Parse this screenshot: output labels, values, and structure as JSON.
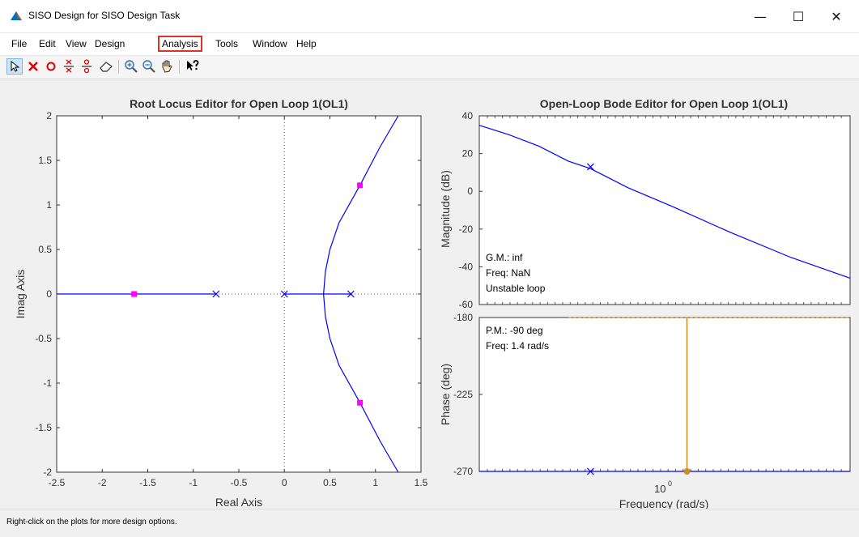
{
  "window": {
    "title": "SISO Design for SISO Design Task",
    "controls": {
      "minimize": "—",
      "maximize": "☐",
      "close": "✕"
    }
  },
  "menu": [
    "File",
    "Edit",
    "View",
    "Design",
    "Analysis",
    "Tools",
    "Window",
    "Help"
  ],
  "menu_highlighted": "Analysis",
  "toolbar": {
    "tools": [
      "select-pointer-icon",
      "add-pole-icon",
      "add-zero-icon",
      "add-complex-pole-icon",
      "add-complex-zero-icon",
      "eraser-icon",
      "zoom-in-icon",
      "zoom-out-icon",
      "pan-hand-icon",
      "whats-this-icon"
    ],
    "selected": "select-pointer-icon"
  },
  "status": "Right-click on the plots for more design options.",
  "colors": {
    "locus": "#0000ff",
    "closed_loop_pole": "#ff00ff",
    "phase_margin": "#d18b1e",
    "highlight": "#e0302a"
  },
  "chart_data": [
    {
      "type": "line",
      "title": "Root Locus Editor for Open Loop 1(OL1)",
      "xlabel": "Real Axis",
      "ylabel": "Imag Axis",
      "xlim": [
        -2.5,
        1.5
      ],
      "ylim": [
        -2,
        2
      ],
      "xticks": [
        "-2.5",
        "-2",
        "-1.5",
        "-1",
        "-0.5",
        "0",
        "0.5",
        "1",
        "1.5"
      ],
      "yticks": [
        "-2",
        "-1.5",
        "-1",
        "-0.5",
        "0",
        "0.5",
        "1",
        "1.5",
        "2"
      ],
      "grid": false,
      "open_loop_poles": [
        [
          -0.75,
          0
        ],
        [
          0,
          0
        ],
        [
          0.73,
          0
        ]
      ],
      "closed_loop_poles": [
        [
          -1.65,
          0
        ],
        [
          0.83,
          1.22
        ],
        [
          0.83,
          -1.22
        ]
      ],
      "series": [
        {
          "values": [
            [
              -2.5,
              0
            ],
            [
              -0.75,
              0
            ]
          ]
        },
        {
          "values": [
            [
              0,
              0
            ],
            [
              0.43,
              0
            ],
            [
              0.73,
              0
            ]
          ]
        },
        {
          "values": [
            [
              0.43,
              0
            ],
            [
              0.45,
              0.25
            ],
            [
              0.5,
              0.5
            ],
            [
              0.6,
              0.8
            ],
            [
              0.83,
              1.22
            ],
            [
              1.05,
              1.65
            ],
            [
              1.25,
              2.0
            ]
          ]
        },
        {
          "values": [
            [
              0.43,
              0
            ],
            [
              0.45,
              -0.25
            ],
            [
              0.5,
              -0.5
            ],
            [
              0.6,
              -0.8
            ],
            [
              0.83,
              -1.22
            ],
            [
              1.05,
              -1.65
            ],
            [
              1.25,
              -2.0
            ]
          ]
        }
      ]
    },
    {
      "type": "line",
      "title": "Open-Loop Bode Editor for Open Loop 1(OL1)",
      "ylabel": "Magnitude (dB)",
      "ylim": [
        -60,
        40
      ],
      "yticks": [
        "-60",
        "-40",
        "-20",
        "0",
        "20",
        "40"
      ],
      "scale_x": "log",
      "grid": false,
      "series": [
        {
          "values": [
            [
              0,
              35
            ],
            [
              0.2,
              30
            ],
            [
              0.4,
              24
            ],
            [
              0.6,
              16
            ],
            [
              0.75,
              12
            ],
            [
              1,
              2
            ],
            [
              1.3,
              -8
            ],
            [
              1.7,
              -22
            ],
            [
              2.1,
              -35
            ],
            [
              2.5,
              -46
            ]
          ]
        }
      ],
      "marker": [
        0.75,
        13
      ],
      "annotations": [
        "G.M.: inf",
        "Freq: NaN",
        "Unstable loop"
      ]
    },
    {
      "type": "line",
      "xlabel": "Frequency (rad/s)",
      "ylabel": "Phase (deg)",
      "ylim": [
        -270,
        -180
      ],
      "yticks": [
        "-180",
        "-225",
        "-270"
      ],
      "xtick_label": "10",
      "xtick_exponent": "0",
      "scale_x": "log",
      "grid": false,
      "series": [
        {
          "values": [
            [
              0,
              -270
            ],
            [
              2.5,
              -270
            ]
          ]
        }
      ],
      "phase_margin_freq": 1.4,
      "marker": [
        0.75,
        -270
      ],
      "annotations": [
        "P.M.: -90 deg",
        "Freq: 1.4 rad/s"
      ]
    }
  ]
}
